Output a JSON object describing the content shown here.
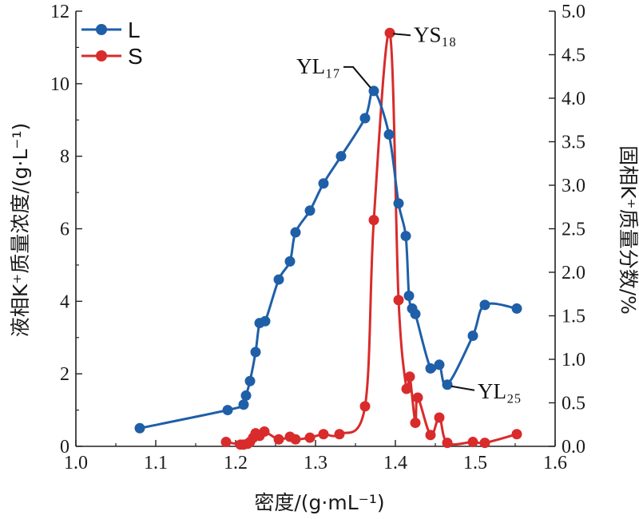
{
  "chart_data": {
    "type": "line",
    "xlabel": "密度/(g·mL⁻¹)",
    "ylabel_left": "液相K⁺质量浓度/(g·L⁻¹)",
    "ylabel_right": "固相K⁺质量分数/%",
    "xlim": [
      1.0,
      1.6
    ],
    "ylim_left": [
      0,
      12
    ],
    "ylim_right": [
      0,
      5.0
    ],
    "x_ticks": [
      "1.0",
      "1.1",
      "1.2",
      "1.3",
      "1.4",
      "1.5",
      "1.6"
    ],
    "y_left_ticks": [
      "0",
      "2",
      "4",
      "6",
      "8",
      "10",
      "12"
    ],
    "y_right_ticks": [
      "0.0",
      "0.5",
      "1.0",
      "1.5",
      "2.0",
      "2.5",
      "3.0",
      "3.5",
      "4.0",
      "4.5",
      "5.0"
    ],
    "legend": {
      "placement": "top-left",
      "entries": [
        "L",
        "S"
      ]
    },
    "series": [
      {
        "name": "L",
        "axis": "left",
        "color": "#1f5fa8",
        "x": [
          1.08,
          1.19,
          1.21,
          1.213,
          1.218,
          1.225,
          1.23,
          1.237,
          1.254,
          1.268,
          1.275,
          1.293,
          1.31,
          1.332,
          1.362,
          1.373,
          1.392,
          1.404,
          1.413,
          1.417,
          1.421,
          1.425,
          1.444,
          1.455,
          1.465,
          1.497,
          1.512,
          1.552
        ],
        "values": [
          0.5,
          1.0,
          1.15,
          1.4,
          1.8,
          2.6,
          3.4,
          3.45,
          4.6,
          5.1,
          5.9,
          6.5,
          7.25,
          8.0,
          9.05,
          9.8,
          8.6,
          6.7,
          5.8,
          4.15,
          3.8,
          3.65,
          2.15,
          2.25,
          1.7,
          3.05,
          3.9,
          3.8
        ]
      },
      {
        "name": "S",
        "axis": "right",
        "color": "#d92b2b",
        "x": [
          1.188,
          1.206,
          1.21,
          1.215,
          1.218,
          1.222,
          1.225,
          1.23,
          1.236,
          1.254,
          1.268,
          1.275,
          1.293,
          1.31,
          1.33,
          1.362,
          1.373,
          1.393,
          1.404,
          1.414,
          1.418,
          1.425,
          1.428,
          1.444,
          1.455,
          1.465,
          1.497,
          1.512,
          1.552
        ],
        "values": [
          0.05,
          0.02,
          0.02,
          0.03,
          0.05,
          0.1,
          0.15,
          0.12,
          0.17,
          0.08,
          0.11,
          0.08,
          0.1,
          0.14,
          0.14,
          0.46,
          2.6,
          4.75,
          1.68,
          0.66,
          0.8,
          0.27,
          0.56,
          0.13,
          0.33,
          0.04,
          0.05,
          0.04,
          0.14
        ]
      }
    ],
    "annotations": [
      {
        "id": "yl17",
        "text": "YL₁₇",
        "series": "L",
        "point_index": 15
      },
      {
        "id": "ys18",
        "text": "YS₁₈",
        "series": "S",
        "point_index": 17
      },
      {
        "id": "yl25",
        "text": "YL₂₅",
        "series": "L",
        "point_index": 24
      }
    ],
    "grid": false
  }
}
